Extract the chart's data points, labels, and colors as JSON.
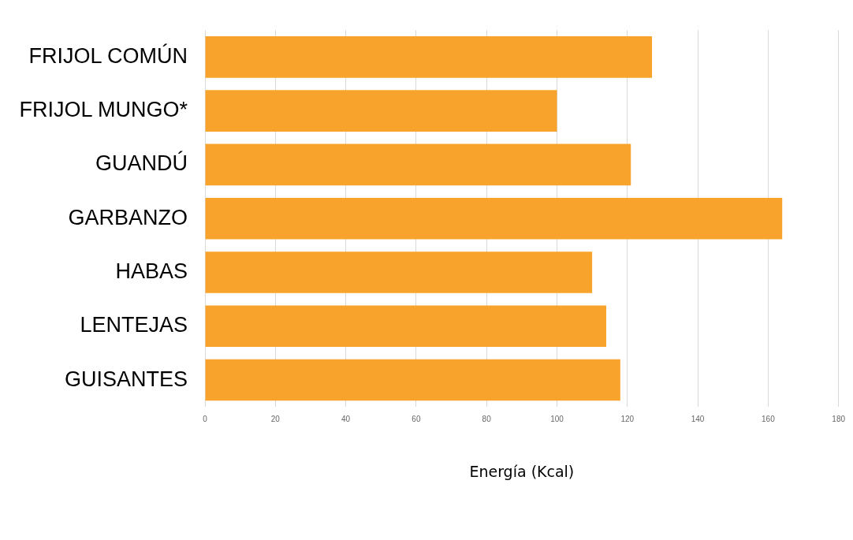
{
  "chart_data": {
    "type": "bar",
    "orientation": "horizontal",
    "xlabel": "Energía (Kcal)",
    "categories": [
      "FRIJOL COMÚN",
      "FRIJOL MUNGO*",
      "GUANDÚ",
      "GARBANZO",
      "HABAS",
      "LENTEJAS",
      "GUISANTES"
    ],
    "values": [
      127,
      100,
      121,
      164,
      110,
      114,
      118
    ],
    "color": "#f8a42c",
    "xlim": [
      0,
      180
    ],
    "xticks": [
      0,
      20,
      40,
      60,
      80,
      100,
      120,
      140,
      160,
      180
    ],
    "grid": "x",
    "legend": false
  }
}
